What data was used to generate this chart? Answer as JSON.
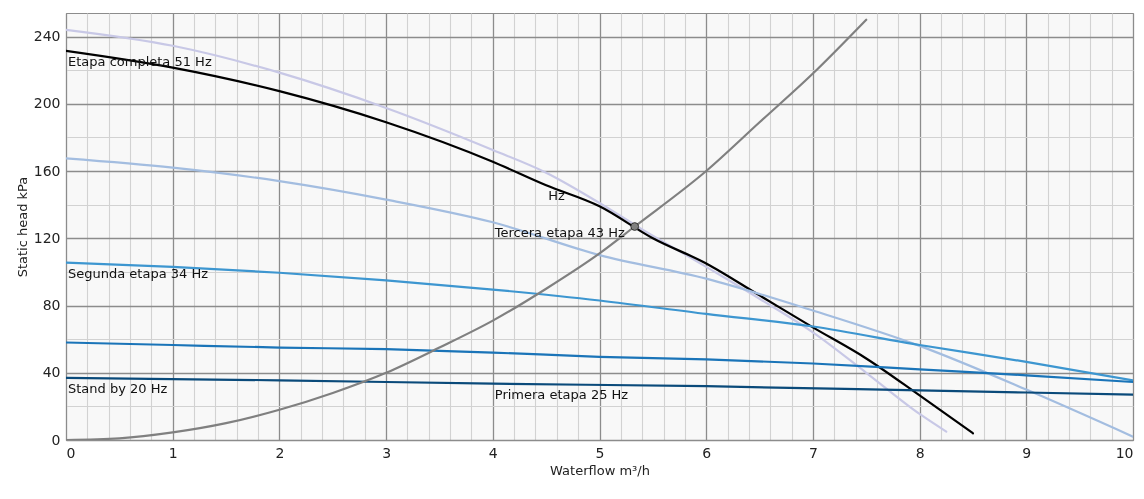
{
  "chart_data": {
    "type": "line",
    "xlabel": "Waterflow m³/h",
    "ylabel": "Static head kPa",
    "xlim": [
      0,
      10
    ],
    "ylim": [
      0,
      254
    ],
    "xticks": [
      0,
      {
        "value": 0.2,
        "label": null
      },
      {
        "value": 0.4,
        "label": null
      },
      {
        "value": 0.6,
        "label": null
      },
      {
        "value": 0.8,
        "label": null
      },
      1,
      {
        "value": 1.2,
        "label": null
      },
      {
        "value": 1.4,
        "label": null
      },
      {
        "value": 1.6,
        "label": null
      },
      {
        "value": 1.8,
        "label": null
      },
      2,
      {
        "value": 2.2,
        "label": null
      },
      {
        "value": 2.4,
        "label": null
      },
      {
        "value": 2.6,
        "label": null
      },
      {
        "value": 2.8,
        "label": null
      },
      3,
      {
        "value": 3.2,
        "label": null
      },
      {
        "value": 3.4,
        "label": null
      },
      {
        "value": 3.6,
        "label": null
      },
      {
        "value": 3.8,
        "label": null
      },
      4,
      {
        "value": 4.2,
        "label": null
      },
      {
        "value": 4.4,
        "label": null
      },
      {
        "value": 4.6,
        "label": null
      },
      {
        "value": 4.8,
        "label": null
      },
      5,
      {
        "value": 5.2,
        "label": null
      },
      {
        "value": 5.4,
        "label": null
      },
      {
        "value": 5.6,
        "label": null
      },
      {
        "value": 5.8,
        "label": null
      },
      6,
      {
        "value": 6.2,
        "label": null
      },
      {
        "value": 6.4,
        "label": null
      },
      {
        "value": 6.6,
        "label": null
      },
      {
        "value": 6.8,
        "label": null
      },
      7,
      {
        "value": 7.2,
        "label": null
      },
      {
        "value": 7.4,
        "label": null
      },
      {
        "value": 7.6,
        "label": null
      },
      {
        "value": 7.8,
        "label": null
      },
      8,
      {
        "value": 8.2,
        "label": null
      },
      {
        "value": 8.4,
        "label": null
      },
      {
        "value": 8.6,
        "label": null
      },
      {
        "value": 8.8,
        "label": null
      },
      9,
      {
        "value": 9.2,
        "label": null
      },
      {
        "value": 9.4,
        "label": null
      },
      {
        "value": 9.6,
        "label": null
      },
      {
        "value": 9.8,
        "label": null
      },
      10
    ],
    "yticks": [
      0,
      {
        "value": 20,
        "label": null
      },
      40,
      {
        "value": 60,
        "label": null
      },
      80,
      {
        "value": 100,
        "label": null
      },
      120,
      {
        "value": 140,
        "label": null
      },
      160,
      {
        "value": 180,
        "label": null
      },
      200,
      {
        "value": 220,
        "label": null
      },
      240
    ],
    "grid": true,
    "marker": "none",
    "line_style": "solid",
    "series": [
      {
        "color": "#c8c8e6",
        "x": [
          0,
          1,
          2,
          3,
          4,
          4.5,
          5,
          5.33,
          6,
          6.5,
          7,
          7.5,
          8,
          8.25
        ],
        "values": [
          244,
          234.5,
          218.5,
          197.5,
          172.5,
          159,
          141,
          128,
          103,
          84,
          64,
          40,
          15.5,
          5
        ]
      },
      {
        "color": "#000000",
        "x": [
          0,
          1,
          2,
          3,
          4,
          4.5,
          5,
          5.5,
          6,
          6.5,
          7,
          7.5,
          8,
          8.5
        ],
        "values": [
          231.5,
          221.5,
          207.5,
          189,
          165.5,
          151.5,
          139,
          120,
          105,
          86,
          67,
          48.5,
          26.5,
          4
        ]
      },
      {
        "color": "#a3bde0",
        "x": [
          0,
          1,
          2,
          3,
          4,
          5,
          6,
          7,
          8,
          9,
          10
        ],
        "values": [
          167.5,
          162,
          154,
          143,
          129.5,
          110,
          96,
          77,
          56,
          30,
          2
        ]
      },
      {
        "color": "#3d96d0",
        "x": [
          0,
          1,
          2,
          3,
          4,
          5,
          6,
          7,
          8,
          9,
          10
        ],
        "values": [
          105.5,
          103,
          99.5,
          95,
          89.5,
          83,
          75,
          67.5,
          56.5,
          46.5,
          35.5
        ]
      },
      {
        "color": "#1a74b8",
        "x": [
          0,
          1,
          2,
          3,
          4,
          5,
          6,
          7,
          8,
          9,
          10
        ],
        "values": [
          58,
          56.5,
          55,
          54,
          52,
          49.5,
          48,
          45.5,
          42,
          38.5,
          34.5
        ]
      },
      {
        "color": "#0a4a7a",
        "x": [
          0,
          2,
          4,
          6,
          8,
          10
        ],
        "values": [
          37,
          35.5,
          33.5,
          32,
          29.5,
          27
        ]
      },
      {
        "color": "#808080",
        "x": [
          0,
          0.5,
          1,
          1.5,
          2,
          2.5,
          3,
          3.5,
          4,
          4.5,
          5,
          5.33,
          6,
          6.5,
          7,
          7.5
        ],
        "values": [
          0,
          1,
          4.5,
          10,
          18,
          28,
          40,
          55,
          71,
          90,
          111,
          127,
          160,
          189,
          218,
          250
        ]
      },
      {
        "type": "scatter",
        "marker": "circle",
        "color": "#808080",
        "x": [
          5.33
        ],
        "values": [
          127
        ]
      }
    ],
    "annotations": [
      {
        "text": "Etapa completa 51 Hz",
        "x": 0,
        "y": 231.5
      },
      {
        "text": "Hz",
        "x": 4.5,
        "y": 151.5
      },
      {
        "text": "Tercera etapa 43 Hz",
        "x": 4,
        "y": 129.5
      },
      {
        "text": "Segunda etapa 34 Hz",
        "x": 0,
        "y": 105.5
      },
      {
        "text": "Stand by 20 Hz",
        "x": 0,
        "y": 37
      },
      {
        "text": "Primera etapa 25 Hz",
        "x": 4,
        "y": 33.5
      }
    ]
  }
}
